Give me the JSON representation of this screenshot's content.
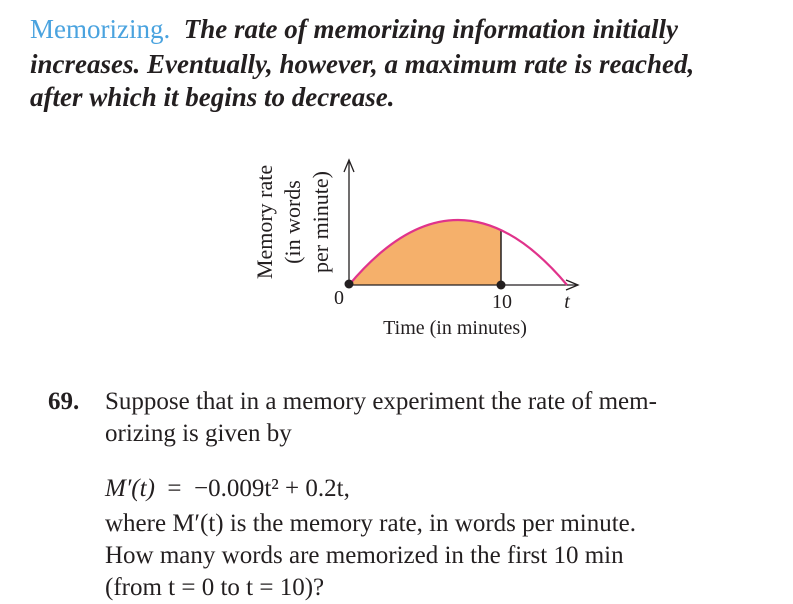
{
  "intro": {
    "heading": "Memorizing.",
    "lines": [
      "The rate of memorizing information initially",
      "increases. Eventually, however, a maximum rate is reached,",
      "after which it begins to decrease."
    ]
  },
  "figure": {
    "y_label": [
      "Memory rate",
      "(in words",
      "per minute)"
    ],
    "origin": "0",
    "tick": "10",
    "axis_variable": "t",
    "x_label": "Time (in minutes)"
  },
  "problem": {
    "number": "69.",
    "lines": [
      "Suppose that in a memory experiment the rate of mem-",
      "orizing is given by"
    ],
    "equation": {
      "lhs": "M′(t)",
      "equals": "=",
      "rhs": "−0.009t² + 0.2t,"
    },
    "question": [
      "where M′(t) is the memory rate, in words per minute.",
      "How many words are memorized in the first 10 min",
      "(from t = 0 to t = 10)?"
    ]
  }
}
